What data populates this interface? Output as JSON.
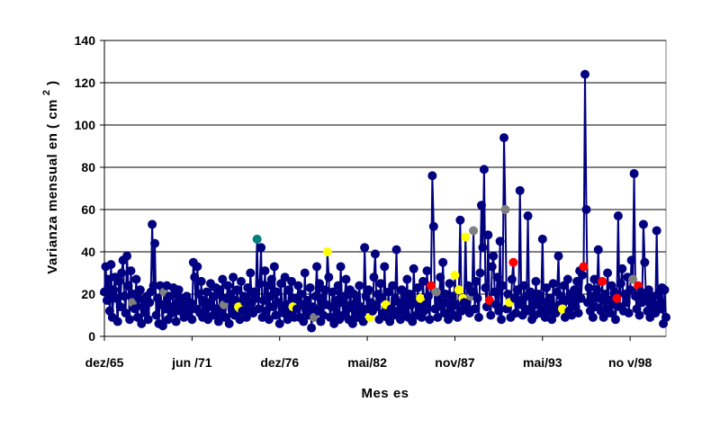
{
  "chart_data": {
    "type": "line",
    "xlabel": "Mes es",
    "ylabel": "Varianza mensual en ( cm",
    "ylabel_sup": "2",
    "ylabel_close": " )",
    "ylim": [
      0,
      140
    ],
    "y_ticks": [
      0,
      20,
      40,
      60,
      80,
      100,
      120,
      140
    ],
    "x_tick_labels": [
      "dez/65",
      "jun /71",
      "dez/76",
      "mai/82",
      "nov/87",
      "mai/93",
      "no v/98"
    ],
    "x_tick_index": [
      0,
      66,
      132,
      198,
      264,
      330,
      396
    ],
    "grid": "horizontal",
    "line_color": "#00007f",
    "default_marker_color": "#000080",
    "series": [
      {
        "values": [
          21,
          33,
          17,
          27,
          12,
          34,
          9,
          22,
          28,
          18,
          7,
          26,
          14,
          30,
          36,
          19,
          11,
          38,
          24,
          8,
          31,
          16,
          20,
          13,
          27,
          9,
          18,
          22,
          6,
          14,
          17,
          11,
          19,
          8,
          16,
          21,
          53,
          24,
          44,
          10,
          18,
          6,
          24,
          15,
          5,
          21,
          13,
          24,
          8,
          19,
          14,
          11,
          23,
          20,
          7,
          16,
          22,
          12,
          18,
          15,
          9,
          14,
          19,
          11,
          12,
          16,
          8,
          35,
          28,
          13,
          33,
          20,
          11,
          26,
          9,
          17,
          12,
          21,
          8,
          16,
          25,
          14,
          10,
          19,
          23,
          13,
          7,
          22,
          11,
          27,
          15,
          9,
          18,
          24,
          6,
          20,
          13,
          28,
          10,
          17,
          22,
          14,
          8,
          26,
          12,
          19,
          16,
          9,
          23,
          12,
          30,
          16,
          11,
          21,
          18,
          46,
          13,
          25,
          42,
          9,
          17,
          31,
          12,
          24,
          8,
          19,
          27,
          14,
          33,
          10,
          21,
          16,
          6,
          25,
          13,
          11,
          28,
          15,
          8,
          22,
          11,
          26,
          14,
          9,
          18,
          13,
          24,
          9,
          20,
          15,
          7,
          30,
          12,
          17,
          10,
          23,
          4,
          14,
          9,
          19,
          33,
          12,
          25,
          7,
          18,
          10,
          22,
          15,
          40,
          28,
          9,
          14,
          21,
          6,
          17,
          11,
          24,
          8,
          33,
          16,
          10,
          19,
          27,
          13,
          8,
          22,
          15,
          6,
          20,
          12,
          17,
          9,
          24,
          14,
          11,
          7,
          42,
          19,
          13,
          22,
          9,
          16,
          12,
          28,
          39,
          14,
          20,
          8,
          25,
          18,
          11,
          33,
          15,
          9,
          21,
          7,
          13,
          24,
          10,
          18,
          41,
          12,
          16,
          8,
          22,
          14,
          19,
          11,
          27,
          9,
          20,
          15,
          7,
          32,
          17,
          10,
          23,
          13,
          18,
          9,
          26,
          12,
          15,
          31,
          19,
          8,
          24,
          76,
          52,
          13,
          21,
          9,
          17,
          28,
          14,
          35,
          11,
          20,
          16,
          8,
          25,
          13,
          19,
          10,
          29,
          15,
          9,
          22,
          55,
          12,
          18,
          16,
          47,
          14,
          24,
          11,
          19,
          21,
          50,
          13,
          26,
          18,
          9,
          30,
          62,
          42,
          79,
          23,
          14,
          48,
          17,
          10,
          33,
          38,
          21,
          15,
          28,
          12,
          45,
          8,
          24,
          94,
          60,
          13,
          20,
          16,
          9,
          27,
          35,
          18,
          11,
          22,
          15,
          69,
          17,
          10,
          24,
          13,
          19,
          57,
          12,
          21,
          8,
          18,
          10,
          26,
          15,
          20,
          11,
          17,
          46,
          13,
          9,
          23,
          16,
          12,
          18,
          8,
          25,
          14,
          11,
          21,
          38,
          15,
          19,
          13,
          24,
          9,
          17,
          27,
          12,
          20,
          10,
          16,
          22,
          14,
          26,
          11,
          31,
          18,
          29,
          33,
          124,
          60,
          16,
          23,
          12,
          19,
          9,
          27,
          14,
          22,
          41,
          18,
          12,
          26,
          9,
          20,
          13,
          30,
          17,
          11,
          24,
          15,
          21,
          8,
          18,
          57,
          14,
          25,
          32,
          12,
          20,
          16,
          28,
          11,
          22,
          36,
          27,
          77,
          19,
          13,
          24,
          10,
          21,
          16,
          53,
          35,
          18,
          12,
          22,
          9,
          17,
          14,
          19,
          11,
          50,
          15,
          21,
          13,
          23,
          6,
          22,
          9
        ]
      }
    ],
    "highlights": [
      {
        "index": 21,
        "color": "#808080"
      },
      {
        "index": 45,
        "color": "#808080"
      },
      {
        "index": 90,
        "color": "#808080"
      },
      {
        "index": 101,
        "color": "#ffff00"
      },
      {
        "index": 115,
        "color": "#008080"
      },
      {
        "index": 142,
        "color": "#ffff00"
      },
      {
        "index": 158,
        "color": "#808080"
      },
      {
        "index": 168,
        "color": "#ffff00"
      },
      {
        "index": 200,
        "color": "#ffff00"
      },
      {
        "index": 212,
        "color": "#ffff00"
      },
      {
        "index": 238,
        "color": "#ffff00"
      },
      {
        "index": 246,
        "color": "#ff0000"
      },
      {
        "index": 250,
        "color": "#808080"
      },
      {
        "index": 264,
        "color": "#ffff00"
      },
      {
        "index": 267,
        "color": "#ffff00"
      },
      {
        "index": 270,
        "color": "#ffff00"
      },
      {
        "index": 272,
        "color": "#ffff00"
      },
      {
        "index": 276,
        "color": "#808080"
      },
      {
        "index": 278,
        "color": "#808080"
      },
      {
        "index": 290,
        "color": "#ff0000"
      },
      {
        "index": 302,
        "color": "#808080"
      },
      {
        "index": 305,
        "color": "#ffff00"
      },
      {
        "index": 308,
        "color": "#ff0000"
      },
      {
        "index": 345,
        "color": "#ffff00"
      },
      {
        "index": 361,
        "color": "#ff0000"
      },
      {
        "index": 375,
        "color": "#ff0000"
      },
      {
        "index": 386,
        "color": "#ff0000"
      },
      {
        "index": 398,
        "color": "#808080"
      },
      {
        "index": 402,
        "color": "#ff0000"
      }
    ]
  }
}
